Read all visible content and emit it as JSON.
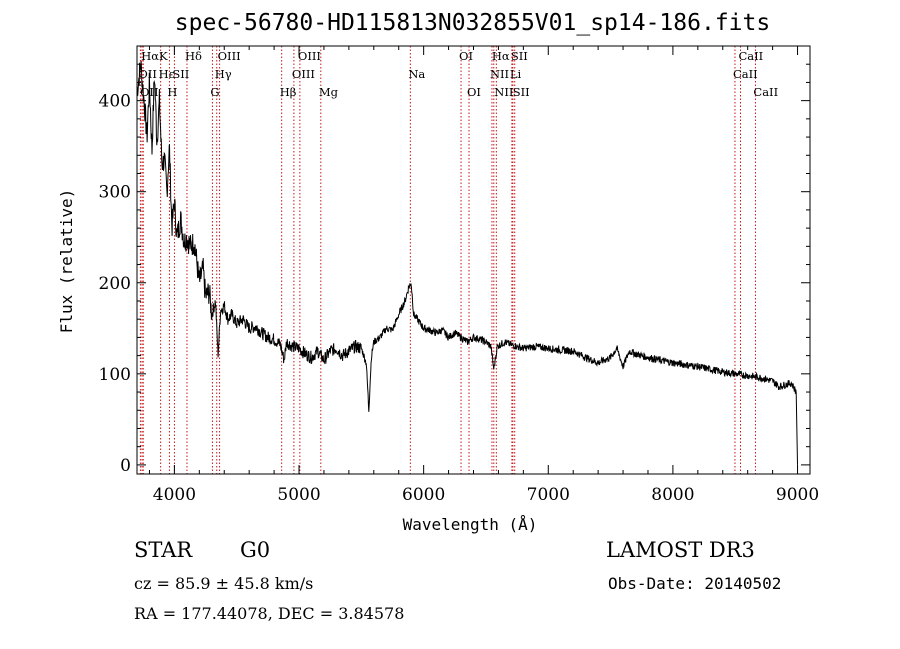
{
  "title": "spec-56780-HD115813N032855V01_sp14-186.fits",
  "chart_data": {
    "type": "line",
    "title": "spec-56780-HD115813N032855V01_sp14-186.fits",
    "xlabel": "Wavelength (Å)",
    "ylabel": "Flux (relative)",
    "xlim": [
      3700,
      9100
    ],
    "ylim": [
      -10,
      460
    ],
    "x_ticks": [
      4000,
      5000,
      6000,
      7000,
      8000,
      9000
    ],
    "y_ticks": [
      0,
      100,
      200,
      300,
      400
    ],
    "grid": false,
    "series": [
      {
        "name": "flux",
        "points": [
          [
            3700,
            410
          ],
          [
            3730,
            440
          ],
          [
            3760,
            395
          ],
          [
            3780,
            360
          ],
          [
            3800,
            420
          ],
          [
            3820,
            345
          ],
          [
            3840,
            430
          ],
          [
            3860,
            355
          ],
          [
            3880,
            400
          ],
          [
            3900,
            330
          ],
          [
            3920,
            335
          ],
          [
            3940,
            300
          ],
          [
            3960,
            350
          ],
          [
            3980,
            260
          ],
          [
            4000,
            290
          ],
          [
            4020,
            250
          ],
          [
            4050,
            270
          ],
          [
            4080,
            245
          ],
          [
            4100,
            250
          ],
          [
            4130,
            240
          ],
          [
            4160,
            245
          ],
          [
            4200,
            200
          ],
          [
            4230,
            215
          ],
          [
            4250,
            185
          ],
          [
            4280,
            190
          ],
          [
            4300,
            165
          ],
          [
            4330,
            180
          ],
          [
            4350,
            120
          ],
          [
            4370,
            170
          ],
          [
            4400,
            175
          ],
          [
            4430,
            160
          ],
          [
            4460,
            165
          ],
          [
            4500,
            155
          ],
          [
            4550,
            160
          ],
          [
            4600,
            150
          ],
          [
            4650,
            152
          ],
          [
            4700,
            145
          ],
          [
            4750,
            140
          ],
          [
            4800,
            138
          ],
          [
            4850,
            132
          ],
          [
            4880,
            115
          ],
          [
            4900,
            135
          ],
          [
            4950,
            130
          ],
          [
            5000,
            128
          ],
          [
            5050,
            122
          ],
          [
            5100,
            118
          ],
          [
            5150,
            125
          ],
          [
            5200,
            115
          ],
          [
            5250,
            125
          ],
          [
            5300,
            128
          ],
          [
            5350,
            120
          ],
          [
            5400,
            125
          ],
          [
            5450,
            130
          ],
          [
            5500,
            128
          ],
          [
            5540,
            112
          ],
          [
            5560,
            60
          ],
          [
            5580,
            118
          ],
          [
            5600,
            135
          ],
          [
            5650,
            140
          ],
          [
            5700,
            150
          ],
          [
            5750,
            148
          ],
          [
            5800,
            165
          ],
          [
            5850,
            180
          ],
          [
            5880,
            195
          ],
          [
            5900,
            200
          ],
          [
            5920,
            165
          ],
          [
            5950,
            160
          ],
          [
            6000,
            150
          ],
          [
            6050,
            148
          ],
          [
            6100,
            145
          ],
          [
            6150,
            148
          ],
          [
            6200,
            140
          ],
          [
            6250,
            145
          ],
          [
            6300,
            140
          ],
          [
            6350,
            135
          ],
          [
            6400,
            140
          ],
          [
            6450,
            138
          ],
          [
            6500,
            135
          ],
          [
            6540,
            130
          ],
          [
            6563,
            105
          ],
          [
            6590,
            130
          ],
          [
            6650,
            135
          ],
          [
            6700,
            132
          ],
          [
            6750,
            130
          ],
          [
            6800,
            128
          ],
          [
            6900,
            130
          ],
          [
            7000,
            128
          ],
          [
            7100,
            126
          ],
          [
            7200,
            125
          ],
          [
            7300,
            118
          ],
          [
            7400,
            112
          ],
          [
            7500,
            118
          ],
          [
            7550,
            128
          ],
          [
            7600,
            108
          ],
          [
            7650,
            125
          ],
          [
            7700,
            122
          ],
          [
            7800,
            118
          ],
          [
            7900,
            115
          ],
          [
            8000,
            112
          ],
          [
            8100,
            110
          ],
          [
            8200,
            108
          ],
          [
            8300,
            105
          ],
          [
            8400,
            102
          ],
          [
            8500,
            100
          ],
          [
            8600,
            98
          ],
          [
            8700,
            96
          ],
          [
            8800,
            92
          ],
          [
            8850,
            86
          ],
          [
            8900,
            88
          ],
          [
            8950,
            90
          ],
          [
            8990,
            80
          ],
          [
            9000,
            0
          ]
        ]
      }
    ],
    "lines": [
      {
        "label": "OII",
        "x": 3727,
        "row": 1,
        "align": "left"
      },
      {
        "label": "HαK",
        "x": 3750,
        "row": 0,
        "align": "left"
      },
      {
        "label": "Hε",
        "x": 3890,
        "row": 1,
        "align": "left"
      },
      {
        "label": "H",
        "x": 3960,
        "row": 2,
        "align": "left"
      },
      {
        "label": "OII",
        "x": 3740,
        "row": 2,
        "align": "left"
      },
      {
        "label": "SII",
        "x": 4000,
        "row": 1,
        "align": "left"
      },
      {
        "label": "Hδ",
        "x": 4101,
        "row": 0,
        "align": "left"
      },
      {
        "label": "OIII",
        "x": 4363,
        "row": 0,
        "align": "left"
      },
      {
        "label": "Hγ",
        "x": 4340,
        "row": 1,
        "align": "left"
      },
      {
        "label": "G",
        "x": 4305,
        "row": 2,
        "align": "left"
      },
      {
        "label": "Hβ",
        "x": 4861,
        "row": 2,
        "align": "left"
      },
      {
        "label": "OIII",
        "x": 4959,
        "row": 1,
        "align": "left"
      },
      {
        "label": "OIII",
        "x": 5007,
        "row": 0,
        "align": "left"
      },
      {
        "label": "Mg",
        "x": 5175,
        "row": 2,
        "align": "left"
      },
      {
        "label": "Na",
        "x": 5893,
        "row": 1,
        "align": "left"
      },
      {
        "label": "OI",
        "x": 6300,
        "row": 0,
        "align": "left"
      },
      {
        "label": "OI",
        "x": 6364,
        "row": 2,
        "align": "left"
      },
      {
        "label": "NII",
        "x": 6548,
        "row": 1,
        "align": "left"
      },
      {
        "label": "Hα",
        "x": 6563,
        "row": 0,
        "align": "left"
      },
      {
        "label": "NII",
        "x": 6583,
        "row": 2,
        "align": "left"
      },
      {
        "label": "SII",
        "x": 6716,
        "row": 0,
        "align": "left"
      },
      {
        "label": "Li",
        "x": 6708,
        "row": 1,
        "align": "left"
      },
      {
        "label": "SII",
        "x": 6731,
        "row": 2,
        "align": "left"
      },
      {
        "label": "CaII",
        "x": 8498,
        "row": 1,
        "align": "left"
      },
      {
        "label": "CaII",
        "x": 8542,
        "row": 0,
        "align": "left"
      },
      {
        "label": "CaII",
        "x": 8662,
        "row": 2,
        "align": "left"
      }
    ]
  },
  "info": {
    "object_class": "STAR",
    "subclass": "G0",
    "survey": "LAMOST DR3",
    "redshift": "cz = 85.9 ± 45.8 km/s",
    "obs_date": "Obs-Date: 20140502",
    "coords": "RA = 177.44078, DEC =    3.84578"
  },
  "colors": {
    "line_markers": "#c00000",
    "spectrum": "#000000",
    "axes": "#000000"
  }
}
